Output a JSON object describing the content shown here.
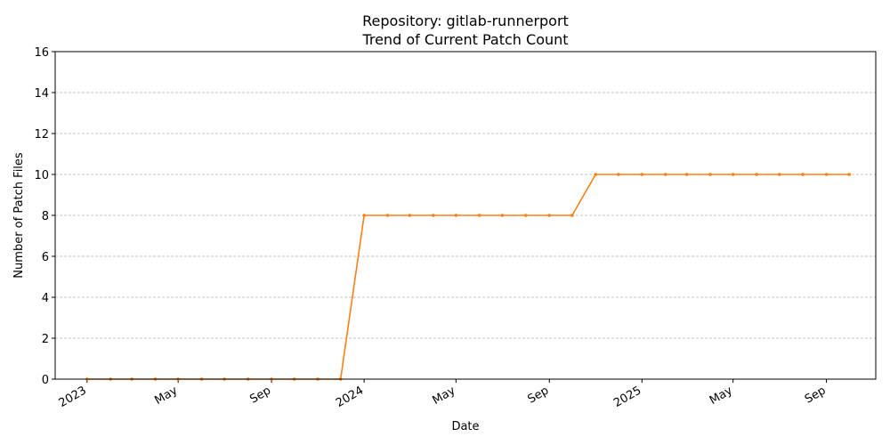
{
  "chart_data": {
    "type": "line",
    "title": "Repository: gitlab-runnerport",
    "subtitle": "Trend of Current Patch Count",
    "xlabel": "Date",
    "ylabel": "Number of Patch Files",
    "ylim": [
      0,
      16
    ],
    "xlim": [
      "2022-11-20",
      "2025-11-05"
    ],
    "yticks": [
      0,
      2,
      4,
      6,
      8,
      10,
      12,
      14,
      16
    ],
    "xticks": [
      {
        "date": "2023-01-01",
        "label": "2023"
      },
      {
        "date": "2023-05-01",
        "label": "May"
      },
      {
        "date": "2023-09-01",
        "label": "Sep"
      },
      {
        "date": "2024-01-01",
        "label": "2024"
      },
      {
        "date": "2024-05-01",
        "label": "May"
      },
      {
        "date": "2024-09-01",
        "label": "Sep"
      },
      {
        "date": "2025-01-01",
        "label": "2025"
      },
      {
        "date": "2025-05-01",
        "label": "May"
      },
      {
        "date": "2025-09-01",
        "label": "Sep"
      }
    ],
    "grid": "y-dashed",
    "color": "#ff7f0e",
    "series": [
      {
        "x": [
          "2023-01-01",
          "2023-02-01",
          "2023-03-01",
          "2023-04-01",
          "2023-05-01",
          "2023-06-01",
          "2023-07-01",
          "2023-08-01",
          "2023-09-01",
          "2023-10-01",
          "2023-11-01",
          "2023-12-01",
          "2024-01-01",
          "2024-02-01",
          "2024-03-01",
          "2024-04-01",
          "2024-05-01",
          "2024-06-01",
          "2024-07-01",
          "2024-08-01",
          "2024-09-01",
          "2024-10-01",
          "2024-11-01",
          "2024-12-01",
          "2025-01-01",
          "2025-02-01",
          "2025-03-01",
          "2025-04-01",
          "2025-05-01",
          "2025-06-01",
          "2025-07-01",
          "2025-08-01",
          "2025-09-01",
          "2025-10-01"
        ],
        "values": [
          0,
          0,
          0,
          0,
          0,
          0,
          0,
          0,
          0,
          0,
          0,
          0,
          8,
          8,
          8,
          8,
          8,
          8,
          8,
          8,
          8,
          8,
          10,
          10,
          10,
          10,
          10,
          10,
          10,
          10,
          10,
          10,
          10,
          10
        ]
      }
    ]
  }
}
